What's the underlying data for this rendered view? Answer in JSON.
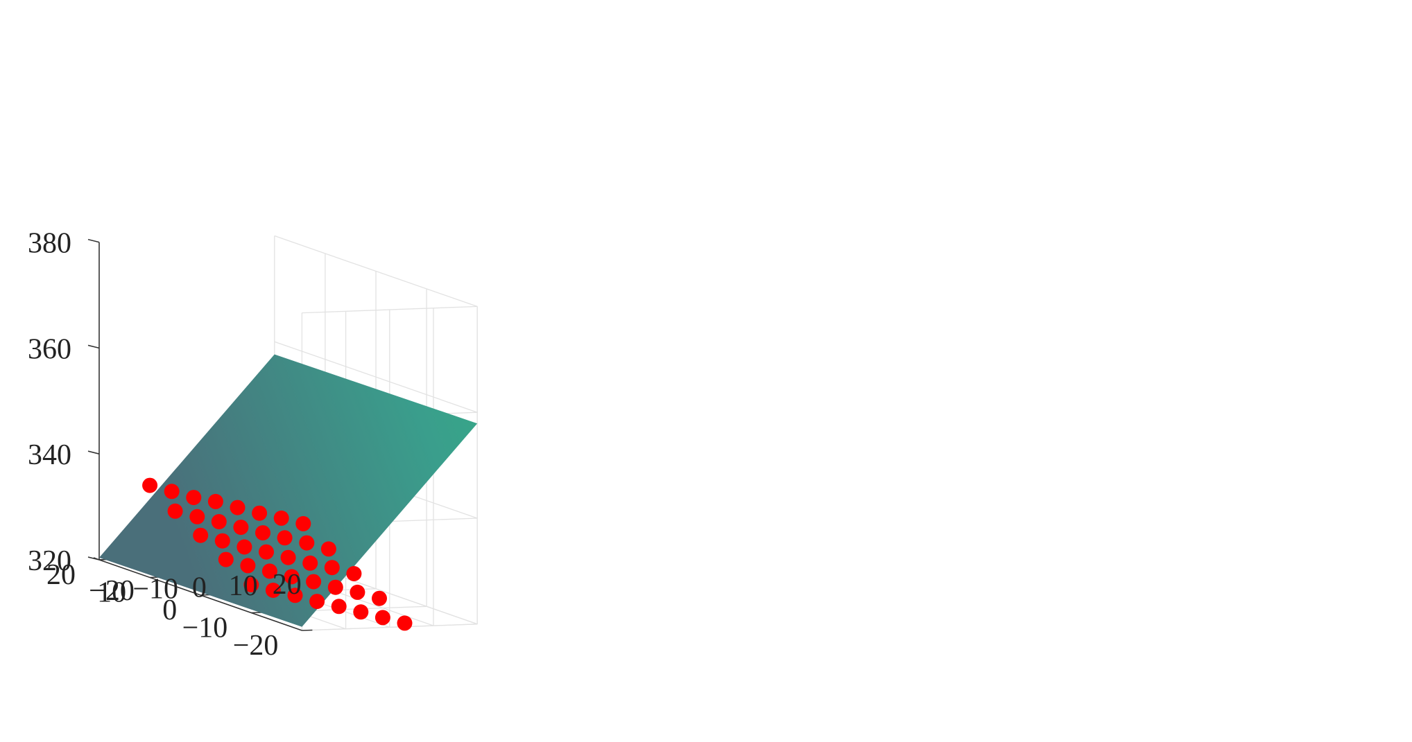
{
  "chart_data": {
    "type": "scatter",
    "plot_kind": "3d-surface-with-scatter",
    "grid": true,
    "axes": {
      "x": {
        "range": [
          -20,
          20
        ],
        "ticks": [
          -20,
          -10,
          0,
          10,
          20
        ],
        "tick_labels": [
          "−20",
          "−10",
          "0",
          "10",
          "20"
        ]
      },
      "y": {
        "range": [
          -20,
          20
        ],
        "ticks": [
          -20,
          -10,
          0,
          10,
          20
        ],
        "tick_labels": [
          "−20",
          "−10",
          "0",
          "10",
          "20"
        ]
      },
      "z": {
        "range": [
          320,
          380
        ],
        "ticks": [
          320,
          340,
          360,
          380
        ],
        "tick_labels": [
          "320",
          "340",
          "360",
          "380"
        ]
      }
    },
    "surface": {
      "type": "plane",
      "x_range": [
        -20,
        20
      ],
      "y_range": [
        -20,
        20
      ],
      "z_at_corners": {
        "x-20_y20": 320.4,
        "x20_y20": 357.6,
        "x20_y-20": 357.9,
        "x-20_y-20": 320.7
      },
      "colormap": [
        "#4a6f7a",
        "#3a9e8c",
        "#2cc07a",
        "#7cc64e",
        "#b6e02a"
      ]
    },
    "points": {
      "color": "#ff0000",
      "marker": "filled-circle",
      "x": [
        -20,
        -20,
        -20,
        -20,
        -20,
        -15,
        -15,
        -15,
        -15,
        -15,
        -10,
        -10,
        -10,
        -10,
        -10,
        -5,
        -5,
        -5,
        -5,
        -5,
        0,
        0,
        0,
        0,
        0,
        5,
        5,
        5,
        5,
        5,
        10,
        10,
        10,
        10,
        10,
        15,
        15,
        15,
        15,
        15
      ],
      "y": [
        10,
        5,
        0,
        -5,
        -10,
        10,
        5,
        0,
        -5,
        -10,
        10,
        5,
        0,
        -5,
        -10,
        10,
        5,
        0,
        -5,
        -10,
        10,
        5,
        0,
        -5,
        -10,
        10,
        5,
        0,
        -5,
        -10,
        10,
        5,
        0,
        -5,
        -10,
        10,
        5,
        0,
        -5,
        -10
      ],
      "z": [
        337.4,
        334.2,
        331.3,
        328.4,
        325.3,
        336.1,
        333.0,
        330.1,
        327.1,
        324.1,
        334.8,
        331.9,
        328.8,
        325.9,
        323.0,
        333.9,
        330.7,
        327.7,
        324.7,
        321.7,
        332.6,
        329.5,
        326.5,
        323.6,
        320.6,
        331.4,
        328.4,
        325.3,
        322.4,
        319.4,
        330.3,
        327.3,
        324.3,
        321.3,
        318.2,
        329.1,
        326.0,
        323.0,
        320.0,
        317.0
      ]
    }
  }
}
